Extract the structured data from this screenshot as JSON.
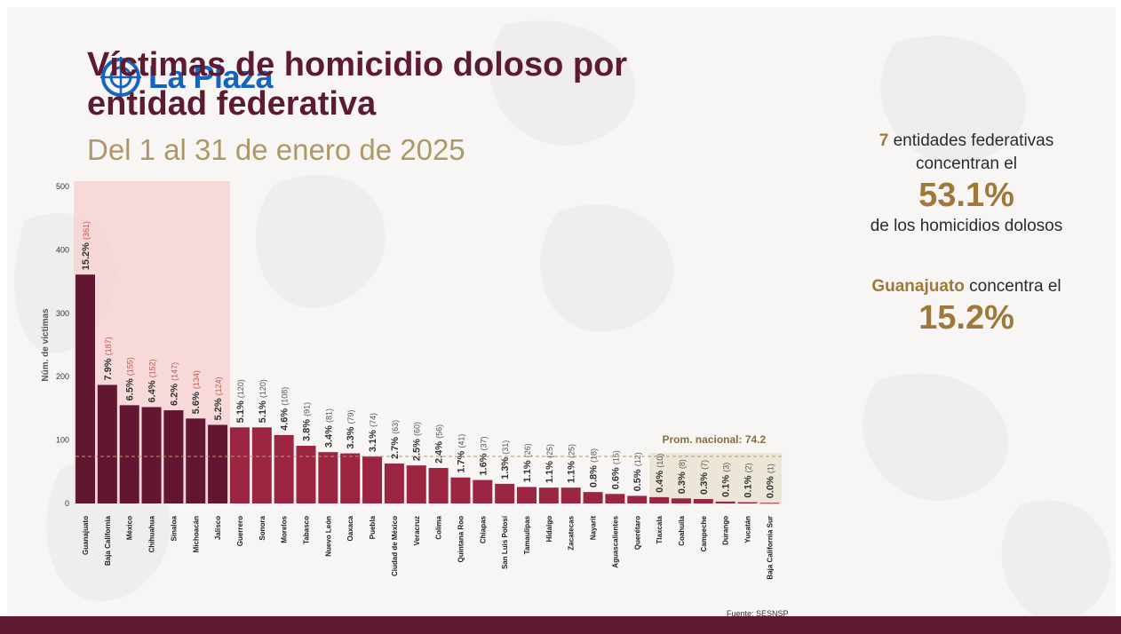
{
  "slide": {
    "title_line1": "Víctimas de homicidio doloso por",
    "title_line2": "entidad federativa",
    "subtitle": "Del 1 al 31 de enero de 2025",
    "logo_text": "La Plaza",
    "source": "Fuente: SESNSP"
  },
  "right_panel": {
    "n_states": "7",
    "line1_rest": " entidades federativas",
    "line2": "concentran el",
    "pct_concentrated": "53.1%",
    "line3": "de los homicidios dolosos",
    "state_name": "Guanajuato",
    "state_rest": " concentra el",
    "state_pct": "15.2%"
  },
  "colors": {
    "top7": "#631632",
    "others": "#9c2542",
    "highlight": "#f7cfd0",
    "avg_band": "#ece6d8",
    "gold": "#a0793a",
    "title": "#5e1a2e"
  },
  "chart_data": {
    "type": "bar",
    "ylabel": "Núm. de víctimas",
    "ylim": [
      0,
      500
    ],
    "yticks": [
      0,
      100,
      200,
      300,
      400,
      500
    ],
    "average": {
      "label": "Prom. nacional: 74.2",
      "value": 74.2
    },
    "highlighted_count": 7,
    "categories": [
      "Guanajuato",
      "Baja California",
      "México",
      "Chihuahua",
      "Sinaloa",
      "Michoacán",
      "Jalisco",
      "Guerrero",
      "Sonora",
      "Morelos",
      "Tabasco",
      "Nuevo León",
      "Oaxaca",
      "Puebla",
      "Ciudad de México",
      "Veracruz",
      "Colima",
      "Quintana Roo",
      "Chiapas",
      "San Luis Potosí",
      "Tamaulipas",
      "Hidalgo",
      "Zacatecas",
      "Nayarit",
      "Aguascalientes",
      "Querétaro",
      "Tlaxcala",
      "Coahuila",
      "Campeche",
      "Durango",
      "Yucatán",
      "Baja California Sur"
    ],
    "values": [
      361,
      187,
      155,
      152,
      147,
      134,
      124,
      120,
      120,
      108,
      91,
      81,
      79,
      74,
      63,
      60,
      56,
      41,
      37,
      31,
      26,
      25,
      25,
      18,
      15,
      12,
      10,
      8,
      7,
      3,
      2,
      1
    ],
    "percent_labels": [
      "15.2%",
      "7.9%",
      "6.5%",
      "6.4%",
      "6.2%",
      "5.6%",
      "5.2%",
      "5.1%",
      "5.1%",
      "4.6%",
      "3.8%",
      "3.4%",
      "3.3%",
      "3.1%",
      "2.7%",
      "2.5%",
      "2.4%",
      "1.7%",
      "1.6%",
      "1.3%",
      "1.1%",
      "1.1%",
      "1.1%",
      "0.8%",
      "0.6%",
      "0.5%",
      "0.4%",
      "0.3%",
      "0.3%",
      "0.1%",
      "0.1%",
      "0.0%"
    ],
    "count_labels": [
      "(361)",
      "(187)",
      "(155)",
      "(152)",
      "(147)",
      "(134)",
      "(124)",
      "(120)",
      "(120)",
      "(108)",
      "(91)",
      "(81)",
      "(79)",
      "(74)",
      "(63)",
      "(60)",
      "(56)",
      "(41)",
      "(37)",
      "(31)",
      "(26)",
      "(25)",
      "(25)",
      "(18)",
      "(15)",
      "(12)",
      "(10)",
      "(8)",
      "(7)",
      "(3)",
      "(2)",
      "(1)"
    ]
  }
}
